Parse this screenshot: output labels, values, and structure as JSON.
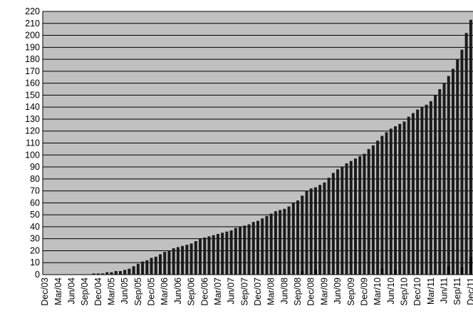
{
  "chart_data": {
    "type": "bar",
    "categories": [
      "Dec/03",
      null,
      null,
      "Mar/04",
      null,
      null,
      "Jun/04",
      null,
      null,
      "Sep/04",
      null,
      null,
      "Dec/04",
      null,
      null,
      "Mar/05",
      null,
      null,
      "Jun/05",
      null,
      null,
      "Sep/05",
      null,
      null,
      "Dec/05",
      null,
      null,
      "Mar/06",
      null,
      null,
      "Jun/06",
      null,
      null,
      "Sep/06",
      null,
      null,
      "Dec/06",
      null,
      null,
      "Mar/07",
      null,
      null,
      "Jun/07",
      null,
      null,
      "Sep/07",
      null,
      null,
      "Dec/07",
      null,
      null,
      "Mar/08",
      null,
      null,
      "Jun/08",
      null,
      null,
      "Sep/08",
      null,
      null,
      "Dec/08",
      null,
      null,
      "Mar/09",
      null,
      null,
      "Jun/09",
      null,
      null,
      "Sep/09",
      null,
      null,
      "Dec/09",
      null,
      null,
      "Mar/10",
      null,
      null,
      "Jun/10",
      null,
      null,
      "Sep/10",
      null,
      null,
      "Dec/10",
      null,
      null,
      "Mar/11",
      null,
      null,
      "Jun/11",
      null,
      null,
      "Sep/11",
      null,
      null,
      "Dec/11"
    ],
    "series": [
      {
        "color": "#1a1a1a",
        "values": [
          0,
          0,
          0,
          0,
          0,
          0,
          0,
          0,
          0,
          0,
          0,
          1,
          1,
          1,
          2,
          2,
          3,
          3,
          4,
          5,
          7,
          9,
          11,
          12,
          14,
          15,
          17,
          19,
          20,
          22,
          23,
          24,
          25,
          26,
          28,
          30,
          31,
          32,
          33,
          34,
          35,
          36,
          37,
          39,
          40,
          41,
          42,
          44,
          45,
          47,
          49,
          51,
          53,
          54,
          55,
          57,
          60,
          62,
          66,
          70,
          72,
          73,
          75,
          77,
          81,
          85,
          88,
          90,
          93,
          95,
          97,
          99,
          101,
          105,
          108,
          112,
          116,
          119,
          122,
          124,
          126,
          128,
          132,
          135,
          138,
          140,
          142,
          145,
          150,
          155,
          160,
          166,
          172,
          180,
          188,
          202,
          213
        ]
      },
      {
        "color": "#000000",
        "values": [
          0,
          0,
          0,
          0,
          0,
          0,
          0,
          0,
          0,
          0,
          0,
          0,
          0,
          0,
          0,
          0,
          0,
          0,
          0,
          0,
          0,
          0,
          0,
          0,
          0,
          0,
          0,
          0,
          0,
          0,
          0,
          0,
          0,
          0,
          0,
          0,
          0,
          0,
          0,
          0,
          0,
          0,
          0,
          0,
          0,
          0,
          0,
          0,
          0,
          0,
          0,
          0,
          0,
          0,
          0,
          0,
          0,
          0,
          3,
          0,
          0,
          4,
          0,
          0,
          0,
          0,
          0,
          0,
          0,
          0,
          0,
          0,
          0,
          0,
          0,
          0,
          5,
          0,
          0,
          4,
          0,
          0,
          0,
          0,
          0,
          0,
          0,
          0,
          0,
          0,
          0,
          7,
          0,
          0,
          6,
          0,
          15
        ]
      }
    ],
    "ylim": [
      0,
      220
    ],
    "yticks": [
      0,
      10,
      20,
      30,
      40,
      50,
      60,
      70,
      80,
      90,
      100,
      110,
      120,
      130,
      140,
      150,
      160,
      170,
      180,
      190,
      200,
      210,
      220
    ],
    "grid": true,
    "background": "#c0c0c0"
  }
}
